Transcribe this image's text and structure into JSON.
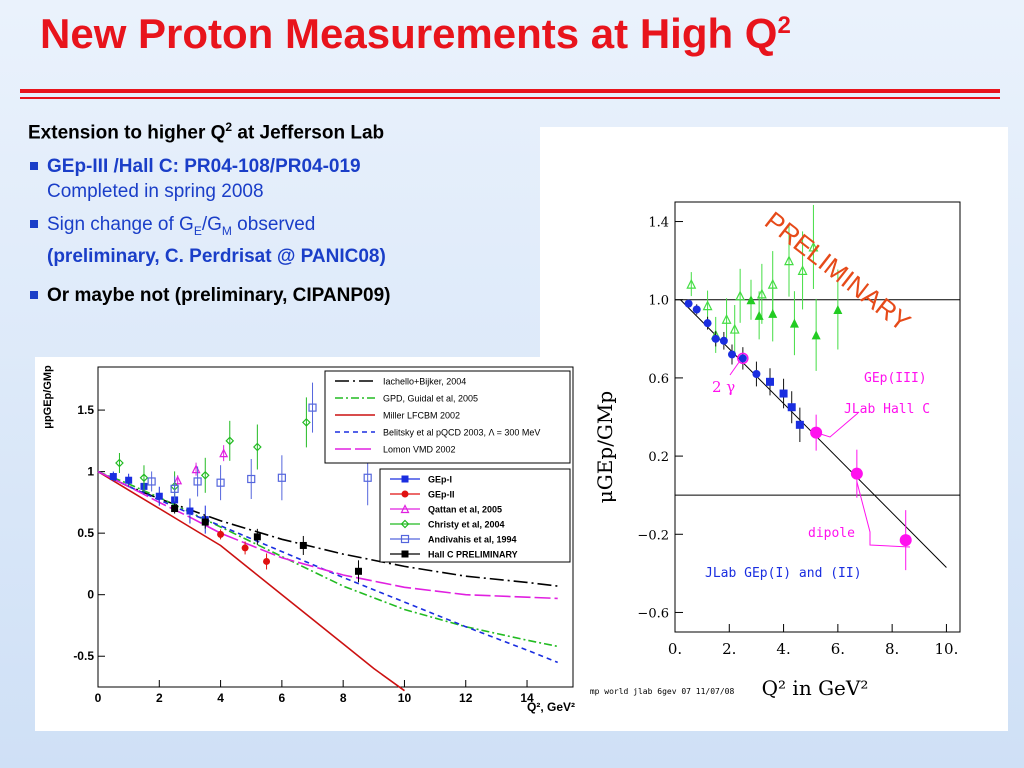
{
  "slide": {
    "title_main": "New Proton Measurements at High Q",
    "title_sup": "2",
    "colors": {
      "title": "#e8141c",
      "bullet": "#1a3ec8"
    },
    "header_pre": "Extension to higher Q",
    "header_sup": "2",
    "header_post": " at Jefferson Lab",
    "bullets": [
      {
        "line1": "GEp-III /Hall C: PR04-108/PR04-019",
        "line2": "Completed in spring 2008"
      },
      {
        "line1_pre": "Sign change of G",
        "sub_e": "E",
        "slash": "/G",
        "sub_m": "M",
        "line1_post": " observed",
        "line2": "(preliminary, C. Perdrisat @ PANIC08)"
      },
      {
        "line1": "Or maybe not (preliminary, CIPANP09)"
      }
    ]
  },
  "chart_data": [
    {
      "type": "line",
      "xlabel": "Q², GeV²",
      "ylabel": "μpGEp/GMp",
      "xlim": [
        0,
        15.5
      ],
      "ylim": [
        -0.75,
        1.85
      ],
      "xticks": [
        0,
        2,
        4,
        6,
        8,
        10,
        12,
        14
      ],
      "yticks": [
        -0.5,
        0,
        0.5,
        1,
        1.5
      ],
      "model_legend": [
        "Iachello+Bijker, 2004",
        "GPD, Guidal et al, 2005",
        "Miller LFCBM 2002",
        "Belitsky et al pQCD 2003, Λ = 300 MeV",
        "Lomon VMD 2002"
      ],
      "data_legend": [
        "GEp-I",
        "GEp-II",
        "Qattan et al, 2005",
        "Christy et al, 2004",
        "Andivahis et al, 1994",
        "Hall C PRELIMINARY"
      ],
      "series": [
        {
          "name": "Iachello+Bijker, 2004",
          "color": "#000000",
          "dash": "14 4 2 4",
          "x": [
            0,
            1,
            2,
            3,
            4,
            6,
            8,
            10,
            12,
            14,
            15
          ],
          "y": [
            1,
            0.88,
            0.78,
            0.69,
            0.6,
            0.45,
            0.33,
            0.23,
            0.15,
            0.1,
            0.07
          ]
        },
        {
          "name": "GPD, Guidal et al, 2005",
          "color": "#22bb22",
          "dash": "8 3 2 3",
          "x": [
            0,
            1,
            2,
            3,
            4,
            6,
            8,
            10,
            12,
            14,
            15
          ],
          "y": [
            1,
            0.9,
            0.79,
            0.67,
            0.55,
            0.31,
            0.07,
            -0.12,
            -0.26,
            -0.37,
            -0.42
          ]
        },
        {
          "name": "Miller LFCBM 2002",
          "color": "#cc1111",
          "dash": "",
          "x": [
            0,
            1,
            2,
            3,
            4,
            5,
            6,
            7,
            8,
            9,
            10
          ],
          "y": [
            1,
            0.85,
            0.7,
            0.55,
            0.4,
            0.2,
            0,
            -0.2,
            -0.4,
            -0.6,
            -0.78
          ]
        },
        {
          "name": "Belitsky et al pQCD 2003, Λ = 300 MeV",
          "color": "#1a2ee0",
          "dash": "5 4",
          "x": [
            0,
            1,
            2,
            3,
            4,
            6,
            8,
            10,
            12,
            14,
            15
          ],
          "y": [
            1,
            0.88,
            0.77,
            0.66,
            0.56,
            0.35,
            0.14,
            -0.06,
            -0.26,
            -0.45,
            -0.55
          ]
        },
        {
          "name": "Lomon VMD 2002",
          "color": "#e020e0",
          "dash": "16 4",
          "x": [
            0,
            1,
            2,
            3,
            4,
            6,
            8,
            10,
            12,
            14,
            15
          ],
          "y": [
            1,
            0.88,
            0.75,
            0.63,
            0.5,
            0.3,
            0.16,
            0.06,
            0,
            -0.02,
            -0.03
          ]
        }
      ],
      "points": [
        {
          "name": "GEp-I",
          "color": "#1a2ee0",
          "shape": "square",
          "x": [
            0.5,
            1,
            1.5,
            2,
            2.5,
            3,
            3.5
          ],
          "y": [
            0.96,
            0.93,
            0.88,
            0.8,
            0.77,
            0.68,
            0.61
          ]
        },
        {
          "name": "GEp-II",
          "color": "#e01111",
          "shape": "circle",
          "x": [
            4,
            4.8,
            5.5
          ],
          "y": [
            0.49,
            0.38,
            0.27
          ]
        },
        {
          "name": "Qattan et al, 2005",
          "color": "#e020e0",
          "shape": "triangle",
          "x": [
            2.6,
            3.2,
            4.1
          ],
          "y": [
            0.93,
            1.02,
            1.15
          ]
        },
        {
          "name": "Christy et al, 2004",
          "color": "#22bb22",
          "shape": "diamond",
          "x": [
            0.7,
            1.5,
            2.5,
            3.5,
            4.3,
            5.2,
            6.8
          ],
          "y": [
            1.07,
            0.95,
            0.88,
            0.97,
            1.25,
            1.2,
            1.4
          ]
        },
        {
          "name": "Andivahis et al, 1994",
          "color": "#5566dd",
          "shape": "opensquare",
          "x": [
            1.75,
            2.5,
            3.25,
            4,
            5,
            6,
            7,
            8.8
          ],
          "y": [
            0.92,
            0.86,
            0.92,
            0.91,
            0.94,
            0.95,
            1.52,
            0.95
          ]
        },
        {
          "name": "Hall C PRELIMINARY",
          "color": "#000000",
          "shape": "square",
          "x": [
            2.5,
            3.5,
            5.2,
            6.7,
            8.5
          ],
          "y": [
            0.7,
            0.59,
            0.47,
            0.4,
            0.19
          ]
        }
      ]
    },
    {
      "type": "scatter",
      "xlabel": "Q² in GeV²",
      "ylabel": "μGEp/GMp",
      "xlim": [
        0,
        10.5
      ],
      "ylim": [
        -0.7,
        1.5
      ],
      "xticks": [
        "0.",
        "2.",
        "4.",
        "6.",
        "8.",
        "10."
      ],
      "yticks": [
        "1.4",
        "1.0",
        "0.6",
        "0.2",
        "−0.2",
        "−0.6"
      ],
      "annotations": [
        "PRELIMINARY",
        "2 γ",
        "GEp(III)",
        "JLab Hall C",
        "dipole",
        "JLab GEp(I) and (II)",
        "gmp world jlab 6gev 07 11/07/08"
      ],
      "series": [
        {
          "name": "JLab GEp(I) and (II)",
          "color": "#1a2ee0",
          "x": [
            0.5,
            0.8,
            1.2,
            1.5,
            1.8,
            2.1,
            2.5,
            3,
            3.5,
            4,
            4.3,
            4.6
          ],
          "y": [
            0.98,
            0.95,
            0.88,
            0.8,
            0.79,
            0.72,
            0.7,
            0.62,
            0.58,
            0.52,
            0.45,
            0.36
          ]
        },
        {
          "name": "Fit line",
          "color": "#000000",
          "x": [
            0.2,
            10
          ],
          "y": [
            1.0,
            -0.37
          ]
        },
        {
          "name": "GEp(III)",
          "color": "#ff11ee",
          "x": [
            2.5,
            5.2,
            6.7,
            8.5
          ],
          "y": [
            0.7,
            0.32,
            0.11,
            -0.23
          ]
        }
      ],
      "green_filled": {
        "x": [
          2.8,
          3.1,
          3.6,
          4.4,
          5.2,
          6
        ],
        "y": [
          1.0,
          0.92,
          0.93,
          0.88,
          0.82,
          0.95
        ]
      },
      "green_open": {
        "x": [
          0.6,
          1.2,
          1.5,
          1.9,
          2.2,
          2.4,
          3.2,
          3.6,
          4.2,
          4.7,
          5.1
        ],
        "y": [
          1.08,
          0.97,
          0.82,
          0.9,
          0.85,
          1.02,
          1.03,
          1.08,
          1.2,
          1.15,
          1.27
        ]
      }
    }
  ]
}
